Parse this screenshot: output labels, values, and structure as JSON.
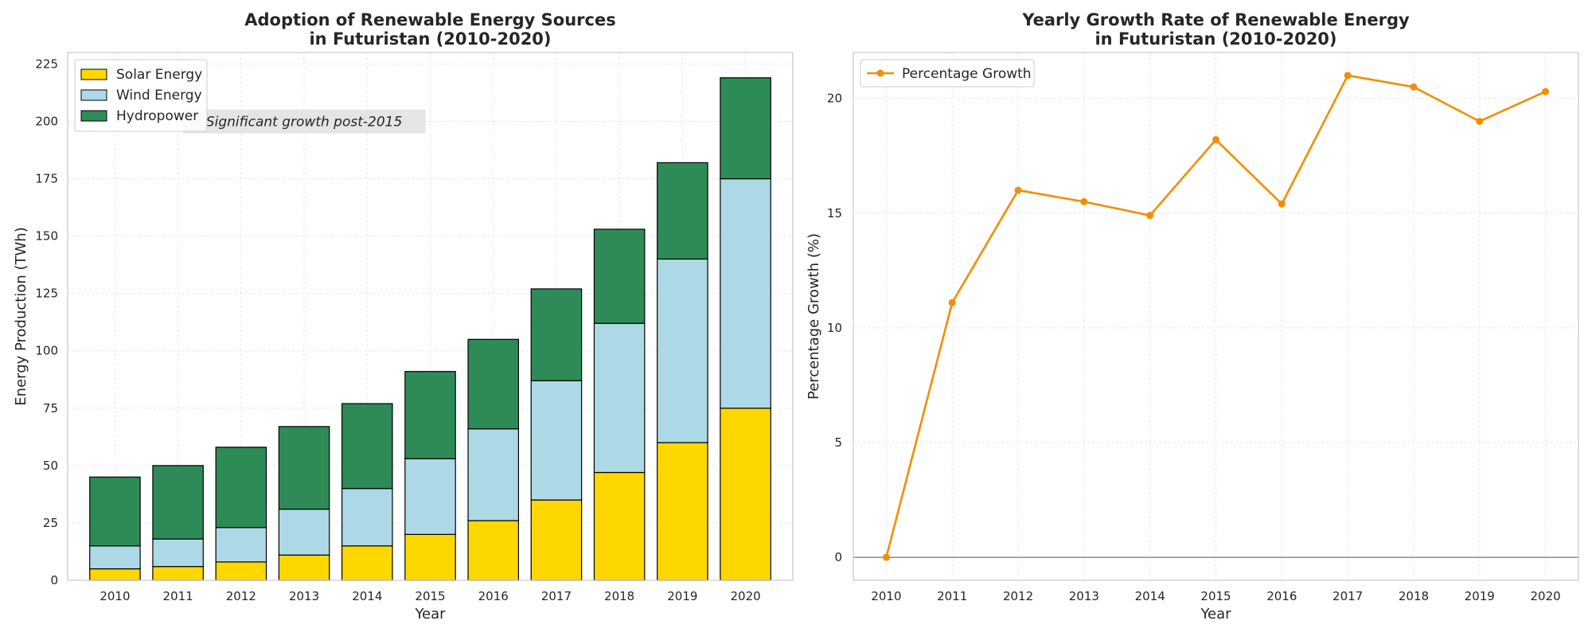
{
  "chart_data": [
    {
      "type": "bar",
      "stacked": true,
      "title": "Adoption of Renewable Energy Sources\nin Futuristan (2010-2020)",
      "xlabel": "Year",
      "ylabel": "Energy Production (TWh)",
      "categories": [
        "2010",
        "2011",
        "2012",
        "2013",
        "2014",
        "2015",
        "2016",
        "2017",
        "2018",
        "2019",
        "2020"
      ],
      "series": [
        {
          "name": "Solar Energy",
          "color": "#FFD700",
          "values": [
            5,
            6,
            8,
            11,
            15,
            20,
            26,
            35,
            47,
            60,
            75
          ]
        },
        {
          "name": "Wind Energy",
          "color": "#ADD8E6",
          "values": [
            10,
            12,
            15,
            20,
            25,
            33,
            40,
            52,
            65,
            80,
            100
          ]
        },
        {
          "name": "Hydropower",
          "color": "#2E8B57",
          "values": [
            30,
            32,
            35,
            36,
            37,
            38,
            39,
            40,
            41,
            42,
            44
          ]
        }
      ],
      "ylim": [
        0,
        230
      ],
      "yticks": [
        0,
        25,
        50,
        75,
        100,
        125,
        150,
        175,
        200,
        225
      ],
      "grid": true,
      "legend_position": "top-left",
      "annotation": {
        "text": "Significant growth post-2015",
        "x": "2013",
        "y": 200
      }
    },
    {
      "type": "line",
      "title": "Yearly Growth Rate of Renewable Energy\nin Futuristan (2010-2020)",
      "xlabel": "Year",
      "ylabel": "Percentage Growth (%)",
      "x": [
        2010,
        2011,
        2012,
        2013,
        2014,
        2015,
        2016,
        2017,
        2018,
        2019,
        2020
      ],
      "series": [
        {
          "name": "Percentage Growth",
          "color": "#F28E00",
          "marker": "circle",
          "values": [
            0,
            11.1,
            16.0,
            15.5,
            14.9,
            18.2,
            15.4,
            21.0,
            20.5,
            19.0,
            20.3
          ]
        }
      ],
      "ylim": [
        -1,
        22
      ],
      "yticks": [
        0,
        5,
        10,
        15,
        20
      ],
      "xticks": [
        2010,
        2011,
        2012,
        2013,
        2014,
        2015,
        2016,
        2017,
        2018,
        2019,
        2020
      ],
      "reference_line": 0,
      "reference_line_color": "#808080",
      "grid": true,
      "legend_position": "top-left"
    }
  ]
}
